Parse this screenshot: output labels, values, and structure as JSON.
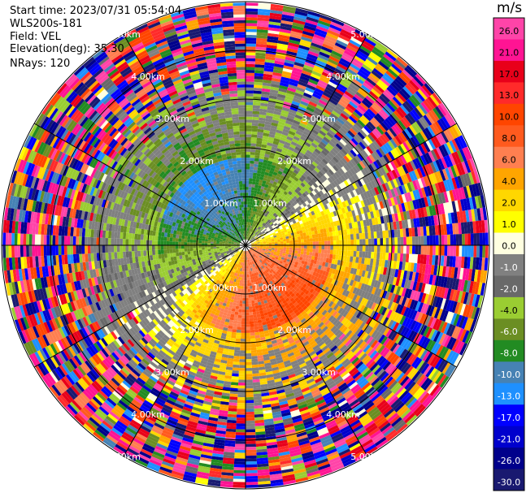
{
  "header": {
    "start_time": "Start time: 2023/07/31 05:54:04",
    "station": "WLS200s-181",
    "field": "Field: VEL",
    "elevation": "Elevation(deg): 35.30",
    "nrays": "NRays: 120"
  },
  "chart_data": {
    "type": "heatmap",
    "projection": "polar (PPI)",
    "field": "VEL",
    "unit": "m/s",
    "max_range_km": 5.0,
    "range_rings_km": [
      1.0,
      2.0,
      3.0,
      4.0,
      5.0
    ],
    "ring_labels": [
      "1.00km",
      "2.00km",
      "3.00km",
      "4.00km",
      "5.00km"
    ],
    "spokes_deg": [
      0,
      30,
      60,
      90,
      120,
      150,
      180,
      210,
      240,
      270,
      300,
      330
    ],
    "nrays": 120,
    "colorbar": {
      "unit": "m/s",
      "ticks": [
        "26.0",
        "21.0",
        "17.0",
        "13.0",
        "10.0",
        "8.0",
        "6.0",
        "4.0",
        "2.0",
        "1.0",
        "0.0",
        "-1.0",
        "-2.0",
        "-4.0",
        "-6.0",
        "-8.0",
        "-10.0",
        "-13.0",
        "-17.0",
        "-21.0",
        "-26.0",
        "-30.0"
      ],
      "bins": [
        {
          "lo": 26,
          "hi": 30,
          "color": "#ff44a8"
        },
        {
          "lo": 21,
          "hi": 26,
          "color": "#ff1493"
        },
        {
          "lo": 17,
          "hi": 21,
          "color": "#e8001a"
        },
        {
          "lo": 13,
          "hi": 17,
          "color": "#ff2a2a"
        },
        {
          "lo": 10,
          "hi": 13,
          "color": "#ff4500"
        },
        {
          "lo": 8,
          "hi": 10,
          "color": "#ff5a1e"
        },
        {
          "lo": 6,
          "hi": 8,
          "color": "#ff7f50"
        },
        {
          "lo": 4,
          "hi": 6,
          "color": "#ffa500"
        },
        {
          "lo": 2,
          "hi": 4,
          "color": "#ffd700"
        },
        {
          "lo": 1,
          "hi": 2,
          "color": "#ffff00"
        },
        {
          "lo": 0,
          "hi": 1,
          "color": "#ffffe0"
        },
        {
          "lo": -1,
          "hi": 0,
          "color": "#808080"
        },
        {
          "lo": -2,
          "hi": -1,
          "color": "#696969"
        },
        {
          "lo": -4,
          "hi": -2,
          "color": "#9acd32"
        },
        {
          "lo": -6,
          "hi": -4,
          "color": "#6b8e23"
        },
        {
          "lo": -8,
          "hi": -6,
          "color": "#228b22"
        },
        {
          "lo": -10,
          "hi": -8,
          "color": "#4682b4"
        },
        {
          "lo": -13,
          "hi": -10,
          "color": "#1e90ff"
        },
        {
          "lo": -17,
          "hi": -13,
          "color": "#0000ff"
        },
        {
          "lo": -21,
          "hi": -17,
          "color": "#0000cd"
        },
        {
          "lo": -26,
          "hi": -21,
          "color": "#00008b"
        },
        {
          "lo": -30,
          "hi": -26,
          "color": "#191970"
        }
      ]
    }
  }
}
